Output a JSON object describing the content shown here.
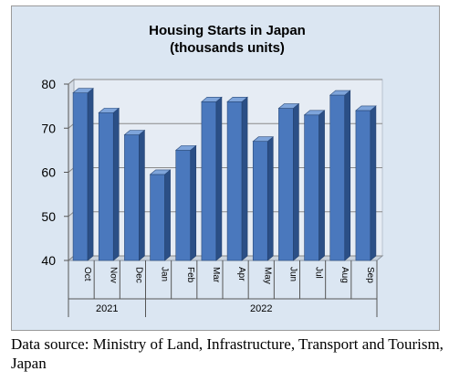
{
  "chart_data": {
    "type": "bar",
    "title": "Housing Starts in Japan",
    "subtitle": "(thousands units)",
    "categories": [
      "Oct",
      "Nov",
      "Dec",
      "Jan",
      "Feb",
      "Mar",
      "Apr",
      "May",
      "Jun",
      "Jul",
      "Aug",
      "Sep"
    ],
    "groups": [
      {
        "label": "2021",
        "start": 0,
        "end": 2
      },
      {
        "label": "2022",
        "start": 3,
        "end": 11
      }
    ],
    "values": [
      78,
      73.5,
      68.5,
      59.5,
      65,
      76,
      76,
      67,
      74.5,
      73,
      77.5,
      74
    ],
    "ylim": [
      40,
      80
    ],
    "yticks": [
      40,
      50,
      60,
      70,
      80
    ],
    "grid": true,
    "legend": "none",
    "colors": {
      "bar_front": "#4a78bd",
      "bar_side": "#2b4f86",
      "bar_top": "#7ea4da",
      "plot_wall": "#e6ecf4",
      "frame_bg": "#dbe6f2"
    }
  },
  "caption": "Data source: Ministry of Land, Infrastructure, Transport and Tourism, Japan"
}
